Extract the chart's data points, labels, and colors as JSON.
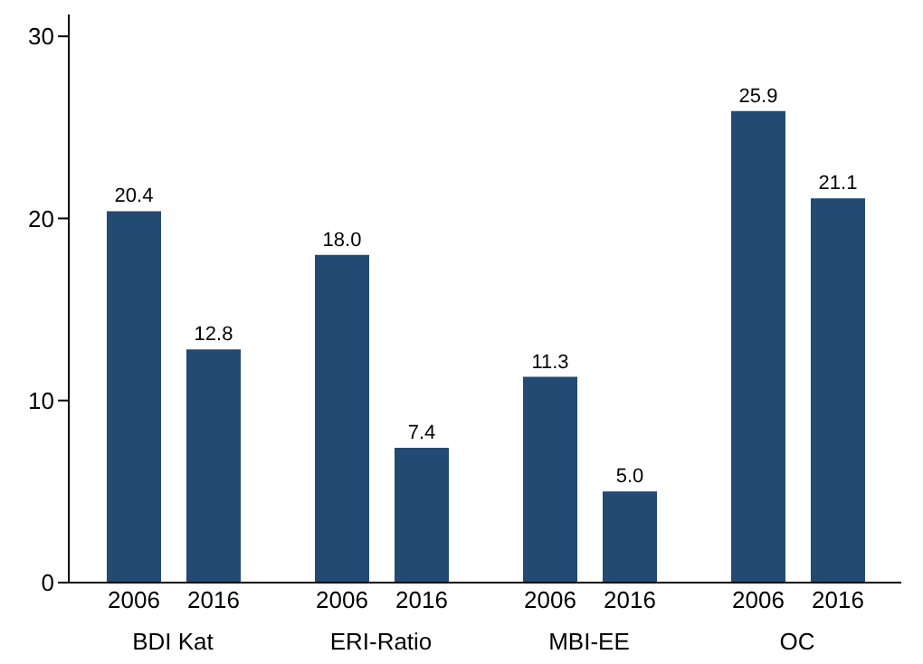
{
  "chart_data": {
    "type": "bar",
    "categories": [
      "BDI Kat",
      "ERI-Ratio",
      "MBI-EE",
      "OC"
    ],
    "series": [
      {
        "name": "2006",
        "color": "#234a73",
        "values": [
          20.4,
          18.0,
          11.3,
          25.9
        ],
        "value_labels": [
          "20.4",
          "18.0",
          "11.3",
          "25.9"
        ]
      },
      {
        "name": "2016",
        "color": "#234a73",
        "values": [
          12.8,
          7.4,
          5.0,
          21.1
        ],
        "value_labels": [
          "12.8",
          "7.4",
          "5.0",
          "21.1"
        ]
      }
    ],
    "ylim": [
      0,
      31.2
    ],
    "yticks": [
      0,
      10,
      20,
      30
    ],
    "grid": false,
    "legend": false
  }
}
